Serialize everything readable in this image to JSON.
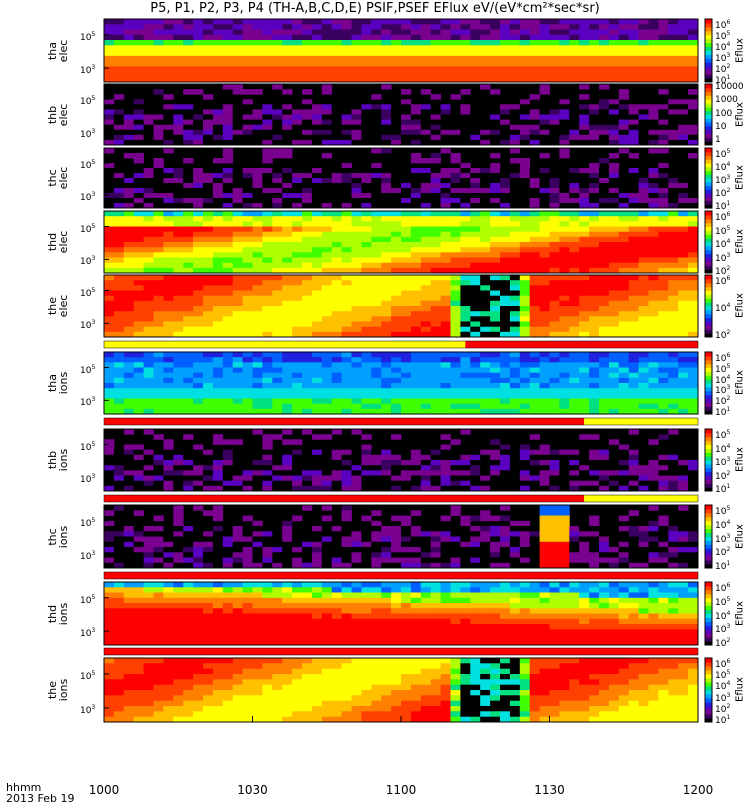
{
  "title": "P5, P1, P2, P3, P4 (TH-A,B,C,D,E) PSIF,PSEF EFlux eV/(eV*cm²*sec*sr)",
  "x_axis": {
    "label_line1": "hhmm",
    "label_line2": "2013 Feb 19",
    "ticks": [
      "1000",
      "1030",
      "1100",
      "1130",
      "1200"
    ]
  },
  "chart_data": {
    "type": "heatmap",
    "title": "P5, P1, P2, P3, P4 (TH-A,B,C,D,E) PSIF,PSEF EFlux eV/(eV*cm²*sec*sr)",
    "x_range": [
      "10:00",
      "12:00"
    ],
    "x_ticks": [
      "1000",
      "1030",
      "1100",
      "1130",
      "1200"
    ],
    "y_scale": "log",
    "colorbar_label": "Eflux",
    "panels": [
      {
        "name": "tha elec",
        "probe": "tha",
        "species": "elec",
        "y_ticks": [
          {
            "b": "10",
            "e": "5"
          },
          {
            "b": "10",
            "e": "3"
          }
        ],
        "cbar_ticks": [
          {
            "b": "10",
            "e": "6"
          },
          {
            "b": "10",
            "e": "5"
          },
          {
            "b": "10",
            "e": "4"
          },
          {
            "b": "10",
            "e": "3"
          },
          {
            "b": "10",
            "e": "2"
          },
          {
            "b": "10",
            "e": "1"
          }
        ],
        "pattern": "steady-band"
      },
      {
        "name": "thb elec",
        "probe": "thb",
        "species": "elec",
        "y_ticks": [
          {
            "b": "10",
            "e": "5"
          },
          {
            "b": "10",
            "e": "3"
          }
        ],
        "cbar_ticks": [
          {
            "b": "10000",
            "e": ""
          },
          {
            "b": "1000",
            "e": ""
          },
          {
            "b": "100",
            "e": ""
          },
          {
            "b": "10",
            "e": ""
          },
          {
            "b": "1",
            "e": ""
          }
        ],
        "pattern": "sparse-noise"
      },
      {
        "name": "thc elec",
        "probe": "thc",
        "species": "elec",
        "y_ticks": [
          {
            "b": "10",
            "e": "5"
          },
          {
            "b": "10",
            "e": "3"
          }
        ],
        "cbar_ticks": [
          {
            "b": "10",
            "e": "5"
          },
          {
            "b": "10",
            "e": "4"
          },
          {
            "b": "10",
            "e": "3"
          },
          {
            "b": "10",
            "e": "2"
          },
          {
            "b": "10",
            "e": "1"
          }
        ],
        "pattern": "sparse-noise"
      },
      {
        "name": "thd elec",
        "probe": "thd",
        "species": "elec",
        "y_ticks": [
          {
            "b": "10",
            "e": "5"
          },
          {
            "b": "10",
            "e": "3"
          }
        ],
        "cbar_ticks": [
          {
            "b": "10",
            "e": "6"
          },
          {
            "b": "10",
            "e": "5"
          },
          {
            "b": "10",
            "e": "4"
          },
          {
            "b": "10",
            "e": "3"
          },
          {
            "b": "10",
            "e": "2"
          }
        ],
        "pattern": "hot-plasma"
      },
      {
        "name": "the elec",
        "probe": "the",
        "species": "elec",
        "y_ticks": [
          {
            "b": "10",
            "e": "5"
          },
          {
            "b": "10",
            "e": "3"
          }
        ],
        "cbar_ticks": [
          {
            "b": "10",
            "e": "6"
          },
          {
            "b": "10",
            "e": "4"
          },
          {
            "b": "10",
            "e": "2"
          }
        ],
        "pattern": "hot-plasma-gap"
      },
      {
        "name": "tha ions",
        "probe": "tha",
        "species": "ions",
        "y_ticks": [
          {
            "b": "10",
            "e": "5"
          },
          {
            "b": "10",
            "e": "3"
          }
        ],
        "cbar_ticks": [
          {
            "b": "10",
            "e": "6"
          },
          {
            "b": "10",
            "e": "5"
          },
          {
            "b": "10",
            "e": "4"
          },
          {
            "b": "10",
            "e": "3"
          },
          {
            "b": "10",
            "e": "2"
          },
          {
            "b": "10",
            "e": "1"
          }
        ],
        "pattern": "cool-band"
      },
      {
        "name": "thb ions",
        "probe": "thb",
        "species": "ions",
        "y_ticks": [
          {
            "b": "10",
            "e": "5"
          },
          {
            "b": "10",
            "e": "3"
          }
        ],
        "cbar_ticks": [
          {
            "b": "10",
            "e": "5"
          },
          {
            "b": "10",
            "e": "4"
          },
          {
            "b": "10",
            "e": "3"
          },
          {
            "b": "10",
            "e": "2"
          },
          {
            "b": "10",
            "e": "1"
          }
        ],
        "pattern": "sparse-noise"
      },
      {
        "name": "thc ions",
        "probe": "thc",
        "species": "ions",
        "y_ticks": [
          {
            "b": "10",
            "e": "5"
          },
          {
            "b": "10",
            "e": "3"
          }
        ],
        "cbar_ticks": [
          {
            "b": "10",
            "e": "5"
          },
          {
            "b": "10",
            "e": "4"
          },
          {
            "b": "10",
            "e": "3"
          },
          {
            "b": "10",
            "e": "2"
          },
          {
            "b": "10",
            "e": "1"
          }
        ],
        "pattern": "sparse-noise-block"
      },
      {
        "name": "thd ions",
        "probe": "thd",
        "species": "ions",
        "y_ticks": [
          {
            "b": "10",
            "e": "5"
          },
          {
            "b": "10",
            "e": "3"
          }
        ],
        "cbar_ticks": [
          {
            "b": "10",
            "e": "6"
          },
          {
            "b": "10",
            "e": "5"
          },
          {
            "b": "10",
            "e": "4"
          },
          {
            "b": "10",
            "e": "3"
          },
          {
            "b": "10",
            "e": "2"
          }
        ],
        "pattern": "diagonal-ions"
      },
      {
        "name": "the ions",
        "probe": "the",
        "species": "ions",
        "y_ticks": [
          {
            "b": "10",
            "e": "5"
          },
          {
            "b": "10",
            "e": "3"
          }
        ],
        "cbar_ticks": [
          {
            "b": "10",
            "e": "6"
          },
          {
            "b": "10",
            "e": "5"
          },
          {
            "b": "10",
            "e": "4"
          },
          {
            "b": "10",
            "e": "3"
          },
          {
            "b": "10",
            "e": "2"
          },
          {
            "b": "10",
            "e": "1"
          }
        ],
        "pattern": "hot-plasma-gap"
      }
    ],
    "status_bars": [
      {
        "after_panel": "the elec",
        "segments": [
          {
            "from": "10:00",
            "to": "11:13",
            "color": "#ffff00"
          },
          {
            "from": "11:13",
            "to": "12:00",
            "color": "#ff0000"
          }
        ]
      },
      {
        "after_panel": "tha ions",
        "segments": [
          {
            "from": "10:00",
            "to": "11:37",
            "color": "#ff0000"
          },
          {
            "from": "11:37",
            "to": "12:00",
            "color": "#ffff00"
          }
        ]
      },
      {
        "after_panel": "thb ions",
        "segments": [
          {
            "from": "10:00",
            "to": "11:37",
            "color": "#ff0000"
          },
          {
            "from": "11:37",
            "to": "12:00",
            "color": "#ffff00"
          }
        ]
      },
      {
        "after_panel": "thc ions",
        "segments": [
          {
            "from": "10:00",
            "to": "12:00",
            "color": "#ff0000"
          }
        ]
      },
      {
        "after_panel": "thd ions",
        "segments": [
          {
            "from": "10:00",
            "to": "12:00",
            "color": "#ff0000"
          }
        ]
      }
    ],
    "colormap": [
      "#000000",
      "#3a0060",
      "#7a0090",
      "#5a00c0",
      "#2020e0",
      "#0060ff",
      "#00a0ff",
      "#00e0e0",
      "#00e080",
      "#40ff00",
      "#b0ff00",
      "#ffff00",
      "#ffc000",
      "#ff8000",
      "#ff4000",
      "#ff0000"
    ]
  }
}
